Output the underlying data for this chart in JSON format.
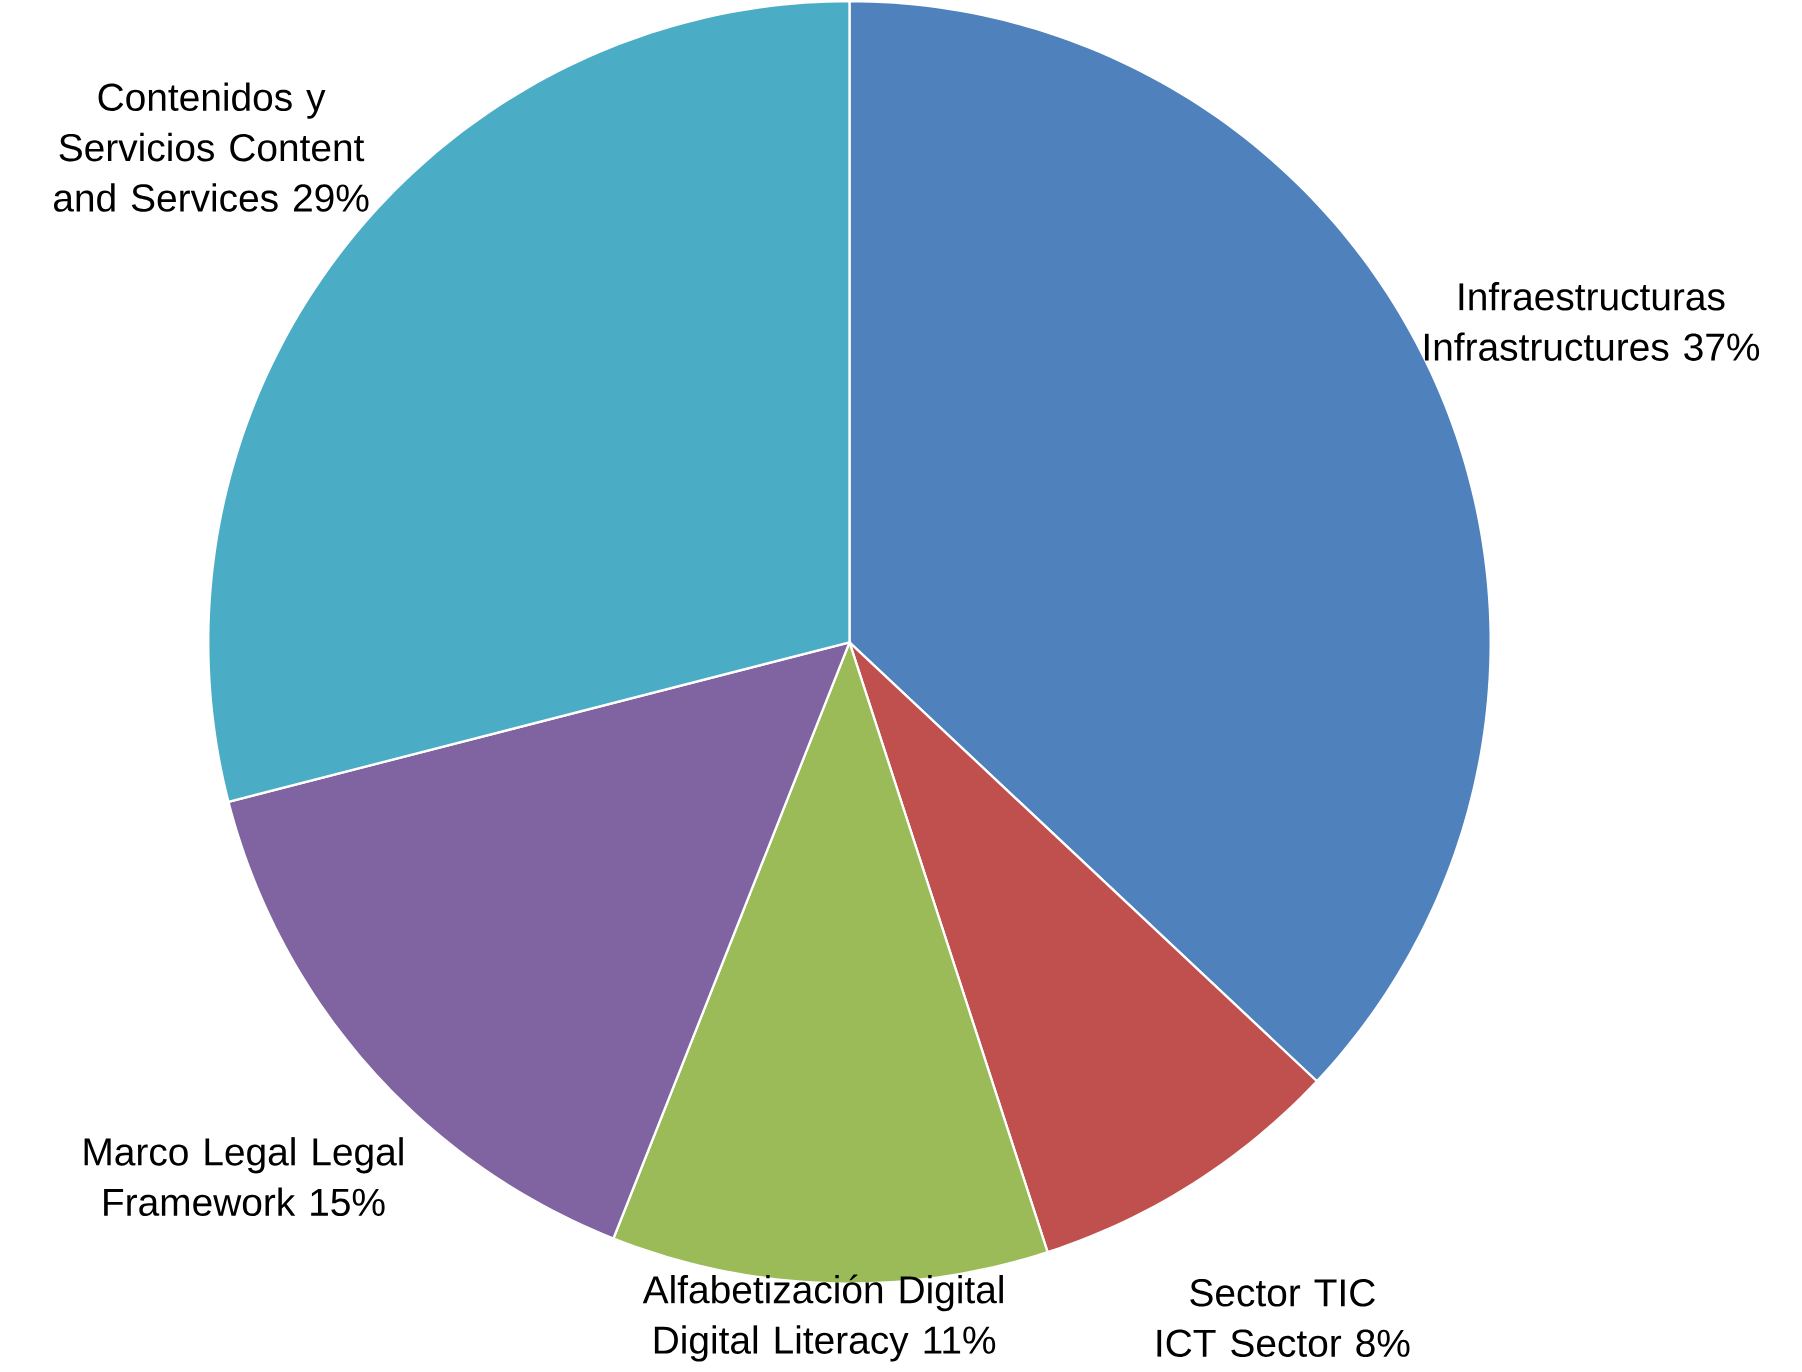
{
  "chart_data": {
    "type": "pie",
    "categories": [
      "Infraestructuras Infrastructures",
      "Sector TIC ICT Sector",
      "Alfabetización Digital Digital Literacy",
      "Marco Legal Legal Framework",
      "Contenidos y Servicios Content and Services"
    ],
    "values": [
      37,
      8,
      11,
      15,
      29
    ],
    "colors": [
      "#4f81bd",
      "#c0504d",
      "#9bbb59",
      "#8064a2",
      "#4bacc6"
    ],
    "value_labels": [
      "37%",
      "8%",
      "11%",
      "15%",
      "29%"
    ]
  }
}
